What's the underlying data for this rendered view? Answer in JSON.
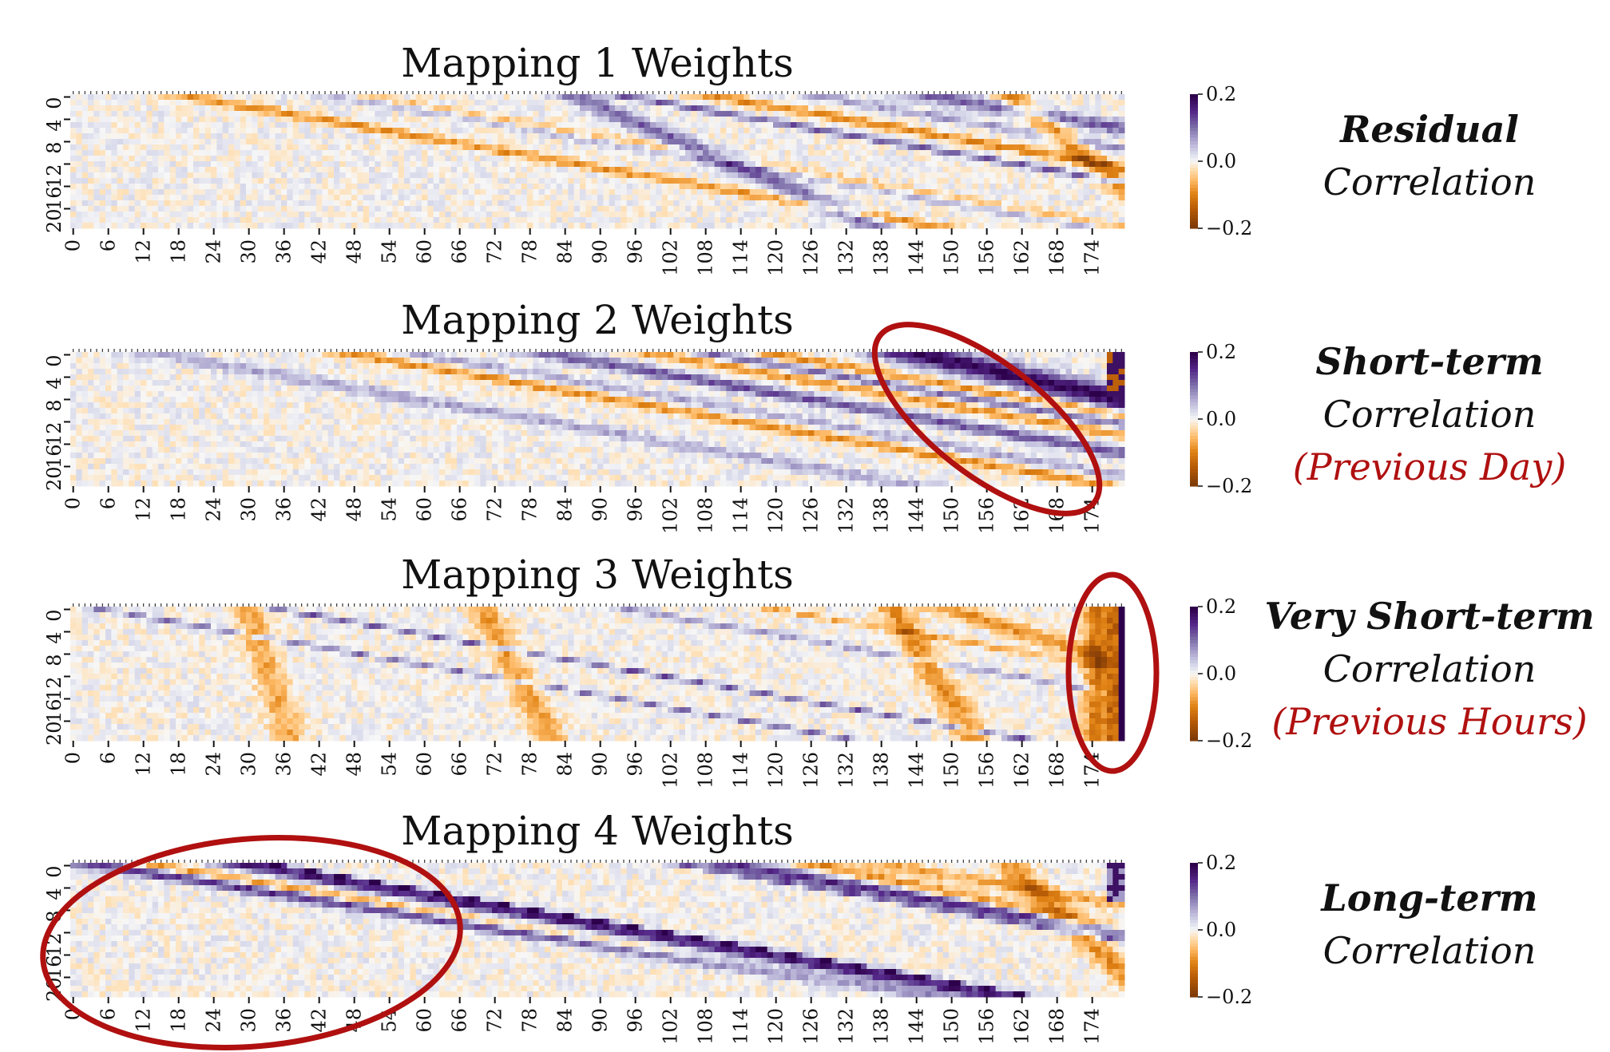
{
  "chart_data": [
    {
      "type": "heatmap",
      "title": "Mapping 1 Weights",
      "x_tick_labels": [
        "0",
        "6",
        "12",
        "18",
        "24",
        "30",
        "36",
        "42",
        "48",
        "54",
        "60",
        "66",
        "72",
        "78",
        "84",
        "90",
        "96",
        "102",
        "108",
        "114",
        "120",
        "126",
        "132",
        "138",
        "144",
        "150",
        "156",
        "162",
        "168",
        "174"
      ],
      "y_tick_labels": [
        "0",
        "4",
        "8",
        "12",
        "16",
        "20"
      ],
      "colorbar": {
        "ticks": [
          "0.2",
          "0.0",
          "−0.2"
        ],
        "vmin": -0.2,
        "vmax": 0.2
      },
      "right_label": {
        "title": "Residual",
        "subtitle": "Correlation",
        "note": ""
      },
      "grid": false
    },
    {
      "type": "heatmap",
      "title": "Mapping 2 Weights",
      "x_tick_labels": [
        "0",
        "6",
        "12",
        "18",
        "24",
        "30",
        "36",
        "42",
        "48",
        "54",
        "60",
        "66",
        "72",
        "78",
        "84",
        "90",
        "96",
        "102",
        "108",
        "114",
        "120",
        "126",
        "132",
        "138",
        "144",
        "150",
        "156",
        "162",
        "168",
        "174"
      ],
      "y_tick_labels": [
        "0",
        "4",
        "8",
        "12",
        "16",
        "20"
      ],
      "colorbar": {
        "ticks": [
          "0.2",
          "0.0",
          "−0.2"
        ],
        "vmin": -0.2,
        "vmax": 0.2
      },
      "right_label": {
        "title": "Short-term",
        "subtitle": "Correlation",
        "note": "(Previous Day)"
      },
      "grid": false
    },
    {
      "type": "heatmap",
      "title": "Mapping 3 Weights",
      "x_tick_labels": [
        "0",
        "6",
        "12",
        "18",
        "24",
        "30",
        "36",
        "42",
        "48",
        "54",
        "60",
        "66",
        "72",
        "78",
        "84",
        "90",
        "96",
        "102",
        "108",
        "114",
        "120",
        "126",
        "132",
        "138",
        "144",
        "150",
        "156",
        "162",
        "168",
        "174"
      ],
      "y_tick_labels": [
        "0",
        "4",
        "8",
        "12",
        "16",
        "20"
      ],
      "colorbar": {
        "ticks": [
          "0.2",
          "0.0",
          "−0.2"
        ],
        "vmin": -0.2,
        "vmax": 0.2
      },
      "right_label": {
        "title": "Very Short-term",
        "subtitle": "Correlation",
        "note": "(Previous Hours)"
      },
      "grid": false
    },
    {
      "type": "heatmap",
      "title": "Mapping 4 Weights",
      "x_tick_labels": [
        "0",
        "6",
        "12",
        "18",
        "24",
        "30",
        "36",
        "42",
        "48",
        "54",
        "60",
        "66",
        "72",
        "78",
        "84",
        "90",
        "96",
        "102",
        "108",
        "114",
        "120",
        "126",
        "132",
        "138",
        "144",
        "150",
        "156",
        "162",
        "168",
        "174"
      ],
      "y_tick_labels": [
        "0",
        "4",
        "8",
        "12",
        "16",
        "20"
      ],
      "colorbar": {
        "ticks": [
          "0.2",
          "0.0",
          "−0.2"
        ],
        "vmin": -0.2,
        "vmax": 0.2
      },
      "right_label": {
        "title": "Long-term",
        "subtitle": "Correlation",
        "note": ""
      },
      "grid": false
    }
  ],
  "colors": {
    "positive": "#2d004b",
    "neutral": "#f7f7f7",
    "negative": "#7f3b08",
    "highlight": "#b01010"
  }
}
